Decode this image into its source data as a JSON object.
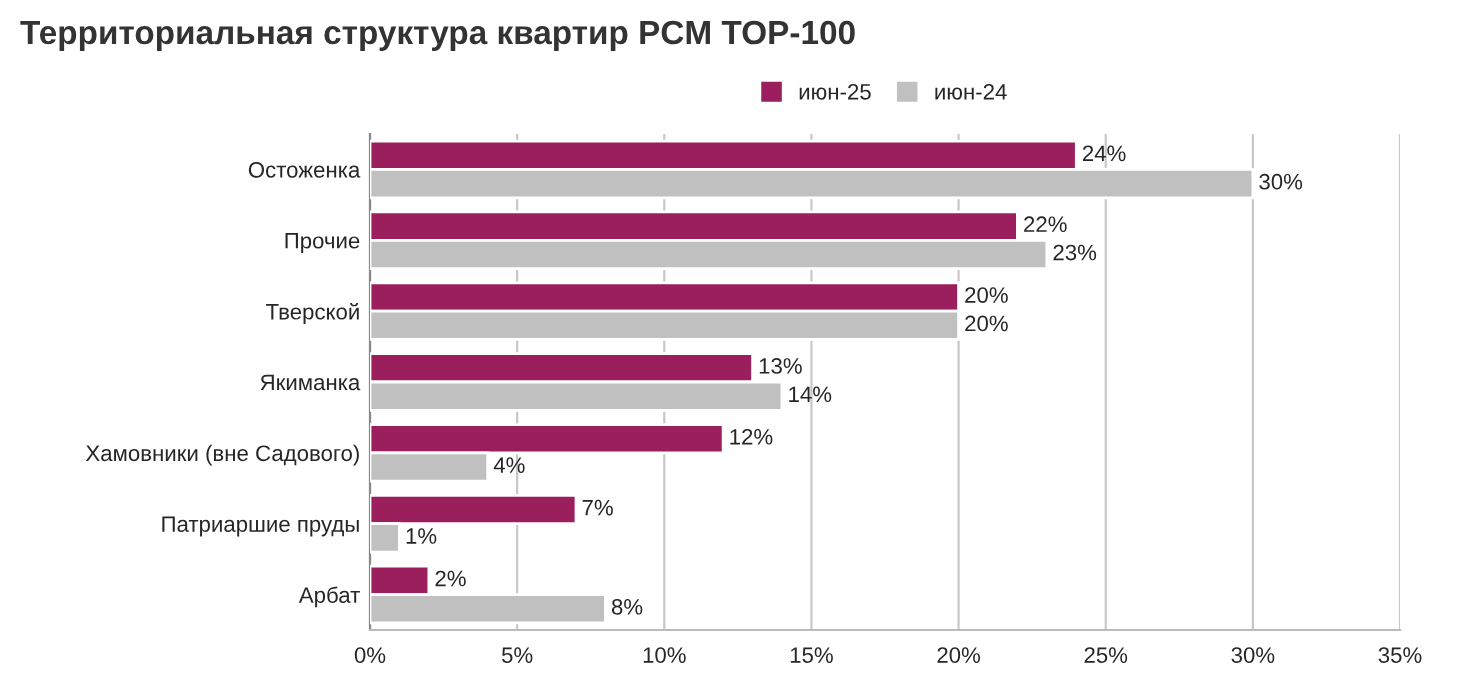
{
  "chart_data": {
    "type": "bar",
    "orientation": "horizontal",
    "title": "Территориальная структура квартир PCM TOP-100",
    "categories": [
      "Остоженка",
      "Прочие",
      "Тверской",
      "Якиманка",
      "Хамовники (вне Садового)",
      "Патриаршие пруды",
      "Арбат"
    ],
    "series": [
      {
        "name": "июн-25",
        "color": "#9b1f5c",
        "values": [
          24,
          22,
          20,
          13,
          12,
          7,
          2
        ],
        "value_labels": [
          "24%",
          "22%",
          "20%",
          "13%",
          "12%",
          "7%",
          "2%"
        ]
      },
      {
        "name": "июн-24",
        "color": "#c0c0c0",
        "values": [
          30,
          23,
          20,
          14,
          4,
          1,
          8
        ],
        "value_labels": [
          "30%",
          "23%",
          "20%",
          "14%",
          "4%",
          "1%",
          "8%"
        ]
      }
    ],
    "xlim": [
      0,
      35
    ],
    "xticks": [
      {
        "value": 0,
        "label": "0%"
      },
      {
        "value": 5,
        "label": "5%"
      },
      {
        "value": 10,
        "label": "10%"
      },
      {
        "value": 15,
        "label": "15%"
      },
      {
        "value": 20,
        "label": "20%"
      },
      {
        "value": 25,
        "label": "25%"
      },
      {
        "value": 30,
        "label": "30%"
      },
      {
        "value": 35,
        "label": "35%"
      }
    ],
    "grid": "x",
    "legend": "top"
  }
}
